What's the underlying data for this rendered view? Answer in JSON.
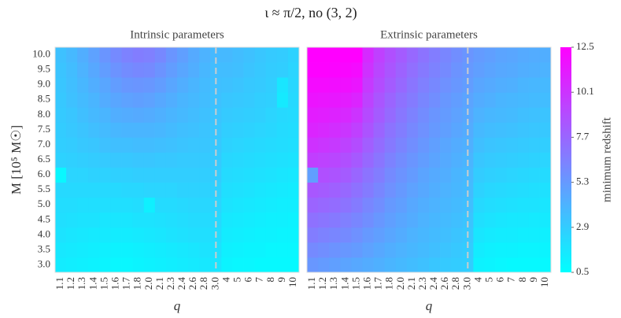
{
  "suptitle": "ι ≈ π/2, no (3, 2)",
  "chart_data": [
    {
      "type": "heatmap",
      "title": "Intrinsic parameters",
      "xlabel": "q",
      "ylabel": "M [10⁵ M☉]",
      "x": [
        "1.1",
        "1.2",
        "1.3",
        "1.4",
        "1.5",
        "1.6",
        "1.7",
        "1.8",
        "2.0",
        "2.1",
        "2.3",
        "2.4",
        "2.6",
        "2.8",
        "3.0",
        "4",
        "5",
        "6",
        "7",
        "8",
        "9",
        "10"
      ],
      "y": [
        "3.0",
        "3.5",
        "4.0",
        "4.5",
        "5.0",
        "5.5",
        "6.0",
        "6.5",
        "7.0",
        "7.5",
        "8.0",
        "8.5",
        "9.0",
        "9.5",
        "10.0"
      ],
      "vline": "3.0",
      "colormap": "cool",
      "zlim": [
        0.5,
        12.5
      ],
      "z": [
        [
          1.4,
          1.3,
          1.2,
          1.1,
          1.0,
          0.9,
          0.9,
          1.0,
          1.1,
          1.2,
          1.3,
          1.4,
          1.5,
          1.6,
          1.7,
          1.0,
          0.9,
          0.9,
          0.8,
          0.8,
          0.8,
          0.8
        ],
        [
          1.6,
          1.5,
          1.4,
          1.3,
          1.2,
          1.1,
          1.1,
          1.2,
          1.3,
          1.4,
          1.5,
          1.6,
          1.7,
          1.8,
          1.9,
          1.2,
          1.1,
          1.0,
          1.0,
          0.9,
          0.9,
          0.9
        ],
        [
          1.8,
          1.7,
          1.6,
          1.5,
          1.5,
          1.4,
          1.4,
          1.5,
          1.6,
          1.7,
          1.8,
          1.9,
          2.0,
          2.0,
          2.1,
          1.4,
          1.3,
          1.2,
          1.1,
          1.1,
          1.0,
          1.0
        ],
        [
          2.0,
          1.9,
          1.8,
          1.8,
          1.7,
          1.7,
          1.7,
          1.8,
          1.8,
          1.9,
          2.0,
          2.1,
          2.2,
          2.2,
          2.3,
          1.6,
          1.5,
          1.4,
          1.3,
          1.2,
          1.2,
          1.1
        ],
        [
          2.1,
          2.1,
          2.0,
          2.0,
          2.0,
          2.0,
          2.0,
          2.1,
          1.2,
          2.2,
          2.2,
          2.3,
          2.4,
          2.4,
          2.5,
          1.8,
          1.7,
          1.6,
          1.5,
          1.4,
          1.3,
          1.3
        ],
        [
          2.3,
          2.3,
          2.3,
          2.3,
          2.3,
          2.3,
          2.4,
          2.4,
          2.5,
          2.5,
          2.5,
          2.6,
          2.6,
          2.6,
          2.7,
          2.0,
          1.9,
          1.8,
          1.7,
          1.6,
          1.5,
          1.4
        ],
        [
          0.9,
          2.5,
          2.5,
          2.6,
          2.6,
          2.7,
          2.7,
          2.8,
          2.8,
          2.8,
          2.8,
          2.8,
          2.8,
          2.8,
          2.9,
          2.2,
          2.1,
          2.0,
          1.9,
          1.8,
          1.7,
          1.6
        ],
        [
          2.6,
          2.7,
          2.8,
          2.9,
          3.0,
          3.1,
          3.1,
          3.2,
          3.2,
          3.1,
          3.1,
          3.0,
          3.0,
          3.0,
          3.0,
          2.4,
          2.3,
          2.2,
          2.1,
          2.0,
          1.9,
          1.8
        ],
        [
          2.8,
          2.9,
          3.1,
          3.2,
          3.4,
          3.5,
          3.5,
          3.6,
          3.6,
          3.5,
          3.4,
          3.3,
          3.2,
          3.2,
          3.1,
          2.6,
          2.5,
          2.4,
          2.3,
          2.2,
          2.1,
          2.0
        ],
        [
          2.9,
          3.1,
          3.3,
          3.5,
          3.7,
          3.9,
          4.0,
          4.0,
          4.0,
          3.9,
          3.7,
          3.5,
          3.4,
          3.3,
          3.2,
          2.8,
          2.7,
          2.6,
          2.5,
          2.4,
          2.2,
          2.1
        ],
        [
          3.0,
          3.2,
          3.5,
          3.8,
          4.0,
          4.3,
          4.4,
          4.5,
          4.4,
          4.2,
          4.0,
          3.8,
          3.6,
          3.4,
          3.3,
          3.0,
          2.9,
          2.8,
          2.7,
          2.5,
          2.3,
          2.2
        ],
        [
          3.1,
          3.4,
          3.7,
          4.0,
          4.4,
          4.7,
          4.9,
          5.0,
          4.9,
          4.6,
          4.3,
          4.0,
          3.8,
          3.6,
          3.4,
          3.2,
          3.1,
          3.0,
          2.8,
          2.7,
          1.5,
          2.3
        ],
        [
          3.2,
          3.5,
          3.9,
          4.3,
          4.7,
          5.1,
          5.4,
          5.5,
          5.4,
          5.1,
          4.7,
          4.3,
          4.0,
          3.7,
          3.5,
          3.4,
          3.3,
          3.1,
          3.0,
          2.8,
          1.7,
          2.4
        ],
        [
          3.3,
          3.6,
          4.1,
          4.6,
          5.1,
          5.6,
          5.9,
          6.1,
          6.0,
          5.6,
          5.1,
          4.7,
          4.3,
          3.9,
          3.6,
          3.6,
          3.5,
          3.3,
          3.1,
          2.9,
          2.8,
          2.5
        ],
        [
          3.4,
          3.8,
          4.3,
          4.9,
          5.5,
          6.0,
          6.4,
          6.6,
          6.5,
          6.1,
          5.5,
          5.0,
          4.5,
          4.1,
          3.8,
          3.8,
          3.6,
          3.4,
          3.2,
          3.0,
          2.9,
          2.6
        ]
      ]
    },
    {
      "type": "heatmap",
      "title": "Extrinsic parameters",
      "xlabel": "q",
      "x": [
        "1.1",
        "1.2",
        "1.3",
        "1.4",
        "1.5",
        "1.6",
        "1.7",
        "1.8",
        "2.0",
        "2.1",
        "2.3",
        "2.4",
        "2.6",
        "2.8",
        "3.0",
        "4",
        "5",
        "6",
        "7",
        "8",
        "9",
        "10"
      ],
      "vline": "3.0",
      "colormap": "cool",
      "zlim": [
        0.5,
        12.5
      ],
      "colorbar": {
        "label": "minimum redshift",
        "ticks": [
          0.5,
          2.9,
          5.3,
          7.7,
          10.1,
          12.5
        ]
      },
      "z": [
        [
          5.4,
          5.2,
          5.0,
          4.8,
          4.6,
          4.4,
          4.2,
          4.0,
          3.8,
          3.6,
          3.4,
          3.2,
          3.0,
          2.9,
          2.8,
          1.1,
          1.0,
          0.9,
          0.8,
          0.8,
          0.8,
          0.8
        ],
        [
          6.0,
          5.8,
          5.6,
          5.4,
          5.2,
          4.9,
          4.6,
          4.3,
          4.1,
          3.9,
          3.7,
          3.5,
          3.3,
          3.1,
          2.9,
          1.4,
          1.2,
          1.1,
          1.1,
          1.0,
          1.0,
          1.0
        ],
        [
          6.6,
          6.4,
          6.2,
          6.0,
          5.7,
          5.3,
          5.0,
          4.7,
          4.4,
          4.1,
          3.9,
          3.7,
          3.5,
          3.3,
          3.1,
          1.7,
          1.5,
          1.4,
          1.4,
          1.3,
          1.3,
          1.2
        ],
        [
          7.2,
          7.0,
          6.8,
          6.5,
          6.2,
          5.8,
          5.4,
          5.0,
          4.7,
          4.4,
          4.1,
          3.9,
          3.7,
          3.5,
          3.3,
          2.0,
          1.8,
          1.7,
          1.6,
          1.6,
          1.5,
          1.5
        ],
        [
          7.8,
          7.6,
          7.4,
          7.1,
          6.7,
          6.2,
          5.8,
          5.3,
          5.0,
          4.6,
          4.3,
          4.1,
          3.9,
          3.7,
          3.5,
          2.3,
          2.1,
          2.0,
          1.9,
          1.8,
          1.8,
          1.7
        ],
        [
          8.4,
          8.2,
          8.0,
          7.6,
          7.2,
          6.7,
          6.2,
          5.7,
          5.3,
          4.9,
          4.6,
          4.3,
          4.1,
          3.9,
          3.7,
          2.6,
          2.4,
          2.3,
          2.2,
          2.1,
          2.0,
          1.9
        ],
        [
          5.0,
          8.8,
          8.6,
          8.2,
          7.7,
          7.1,
          6.6,
          6.0,
          5.6,
          5.2,
          4.8,
          4.5,
          4.3,
          4.0,
          3.8,
          2.9,
          2.7,
          2.6,
          2.5,
          2.4,
          2.3,
          2.2
        ],
        [
          9.6,
          9.4,
          9.2,
          8.8,
          8.3,
          7.6,
          7.0,
          6.4,
          5.9,
          5.5,
          5.1,
          4.8,
          4.5,
          4.2,
          4.0,
          3.2,
          3.0,
          2.9,
          2.8,
          2.7,
          2.6,
          2.5
        ],
        [
          10.2,
          10.0,
          9.8,
          9.4,
          8.9,
          8.1,
          7.4,
          6.8,
          6.3,
          5.8,
          5.4,
          5.0,
          4.7,
          4.4,
          4.2,
          3.5,
          3.3,
          3.2,
          3.1,
          3.0,
          2.9,
          2.8
        ],
        [
          10.8,
          10.6,
          10.4,
          10.0,
          9.5,
          8.6,
          7.8,
          7.1,
          6.6,
          6.1,
          5.7,
          5.3,
          5.0,
          4.7,
          4.4,
          3.8,
          3.6,
          3.5,
          3.4,
          3.3,
          3.2,
          3.1
        ],
        [
          11.2,
          11.1,
          10.9,
          10.6,
          10.1,
          9.0,
          8.2,
          7.5,
          6.9,
          6.4,
          5.9,
          5.5,
          5.2,
          4.9,
          4.6,
          4.1,
          3.9,
          3.8,
          3.7,
          3.5,
          3.4,
          3.3
        ],
        [
          11.6,
          11.5,
          11.4,
          11.2,
          10.8,
          9.4,
          8.5,
          7.8,
          7.2,
          6.7,
          6.2,
          5.8,
          5.4,
          5.1,
          4.8,
          4.4,
          4.2,
          4.0,
          3.9,
          3.8,
          3.7,
          3.6
        ],
        [
          12.0,
          12.0,
          11.9,
          11.8,
          11.5,
          9.8,
          8.9,
          8.2,
          7.6,
          7.0,
          6.5,
          6.1,
          5.7,
          5.4,
          5.1,
          4.7,
          4.5,
          4.3,
          4.2,
          4.0,
          3.9,
          3.8
        ],
        [
          12.4,
          12.4,
          12.3,
          12.2,
          12.0,
          10.2,
          9.2,
          8.5,
          7.9,
          7.3,
          6.8,
          6.4,
          6.0,
          5.6,
          5.3,
          5.0,
          4.8,
          4.6,
          4.5,
          4.3,
          4.2,
          4.1
        ],
        [
          12.5,
          12.5,
          12.5,
          12.5,
          12.5,
          10.5,
          9.5,
          8.8,
          8.2,
          7.6,
          7.1,
          6.6,
          6.2,
          5.8,
          5.5,
          5.2,
          5.0,
          4.8,
          4.7,
          4.5,
          4.4,
          4.3
        ]
      ]
    }
  ]
}
